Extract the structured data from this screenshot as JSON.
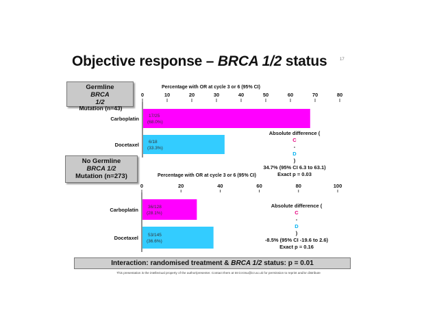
{
  "slide": {
    "title_main": "Objective response – ",
    "title_italic": "BRCA 1/2",
    "title_end": " status",
    "slide_number": "17",
    "footer": "This presentation is the intellectual property of the author/presenter. Contact them at tnt-icrctsu@icr.ac.uk for permission to reprint and/or distribute"
  },
  "panels": [
    {
      "box_line1": "Germline ",
      "box_line1_italic": "BRCA",
      "box_line2_italic": "1/2",
      "n_label": "Mutation (n=43)",
      "diff_line1_pre": "Absolute difference (",
      "diff_c": "C",
      "diff_dash": "-",
      "diff_d": "D",
      "diff_line1_post": ")",
      "diff_line2": "34.7% (95% CI 6.3 to 63.1)",
      "diff_line3": "Exact p = 0.03"
    },
    {
      "box_line1": "No Germline",
      "box_line2_italic": "BRCA 1/2",
      "box_line3": "Mutation (n=273)",
      "diff_line1_pre": "Absolute difference (",
      "diff_c": "C",
      "diff_dash": "-",
      "diff_d": "D",
      "diff_line1_post": ")",
      "diff_line2": "-8.5% (95% CI -19.6 to 2.6)",
      "diff_line3": "Exact p = 0.16"
    }
  ],
  "interaction": {
    "pre": "Interaction: randomised treatment & ",
    "italic": "BRCA 1/2",
    "post": " status: p = 0.01"
  },
  "colors": {
    "carboplatin": "#ff00ff",
    "docetaxel": "#33ccff"
  },
  "chart_data": [
    {
      "type": "bar",
      "orientation": "horizontal",
      "title": "Percentage with OR at cycle 3 or 6 (95% CI)",
      "categories": [
        "Carboplatin",
        "Docetaxel"
      ],
      "values": [
        68.0,
        33.3
      ],
      "bar_labels": [
        [
          "17/25",
          "(68.0%)"
        ],
        [
          "6/18",
          "(33.3%)"
        ]
      ],
      "xlim": [
        0,
        80
      ],
      "xticks": [
        0,
        10,
        20,
        30,
        40,
        50,
        60,
        70,
        80
      ]
    },
    {
      "type": "bar",
      "orientation": "horizontal",
      "title": "Percentage with OR at cycle 3 or 6 (95% CI)",
      "categories": [
        "Carboplatin",
        "Docetaxel"
      ],
      "values": [
        28.1,
        36.6
      ],
      "bar_labels": [
        [
          "36/128",
          "(28.1%)"
        ],
        [
          "53/145",
          "(36.6%)"
        ]
      ],
      "xlim": [
        0,
        100
      ],
      "xticks": [
        0,
        20,
        40,
        60,
        80,
        100
      ]
    }
  ]
}
